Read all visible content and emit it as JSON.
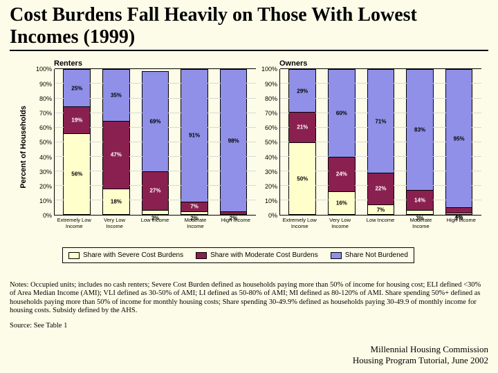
{
  "background_color": "#fdfce8",
  "title": "Cost Burdens Fall Heavily on Those With Lowest Incomes  (1999)",
  "ylabel": "Percent of Households",
  "legend": {
    "severe": "Share with Severe Cost Burdens",
    "moderate": "Share with Moderate Cost Burdens",
    "none": "Share Not Burdened"
  },
  "colors": {
    "severe": "#ffffcc",
    "moderate": "#8a2050",
    "none": "#9090e8",
    "grid": "#d8d8d8"
  },
  "yaxis": {
    "min": 0,
    "max": 100,
    "step": 10,
    "suffix": "%"
  },
  "categories": [
    "Extremely Low Income",
    "Very Low Income",
    "Low Income",
    "Moderate Income",
    "High Income"
  ],
  "panels": [
    {
      "title": "Renters",
      "bars": [
        {
          "none": 25,
          "moderate": 19,
          "severe": 56
        },
        {
          "none": 35,
          "moderate": 47,
          "severe": 18
        },
        {
          "none": 69,
          "moderate": 27,
          "severe": 3
        },
        {
          "none": 91,
          "moderate": 7,
          "severe": 2
        },
        {
          "none": 98,
          "moderate": 2,
          "severe": 0
        }
      ]
    },
    {
      "title": "Owners",
      "bars": [
        {
          "none": 29,
          "moderate": 21,
          "severe": 50
        },
        {
          "none": 60,
          "moderate": 24,
          "severe": 16
        },
        {
          "none": 71,
          "moderate": 22,
          "severe": 7
        },
        {
          "none": 83,
          "moderate": 14,
          "severe": 3
        },
        {
          "none": 95,
          "moderate": 4,
          "severe": 1
        }
      ]
    }
  ],
  "notes": "Notes: Occupied units; includes no cash renters; Severe Cost Burden defined as households paying more than 50% of income for housing cost; ELI defined <30% of Area Median Income (AMI); VLI defined as 30-50% of AMI; LI defined as 50-80% of AMI; MI defined as 80-120% of AMI. Share spending 50%+ defined as households paying more than 50% of income for monthly housing costs; Share spending 30-49.9% defined as households paying 30-49.9 of monthly income for housing costs. Subsidy defined by the AHS.",
  "source": "Source: See Table 1",
  "attribution_line1": "Millennial Housing Commission",
  "attribution_line2": "Housing Program Tutorial, June 2002"
}
